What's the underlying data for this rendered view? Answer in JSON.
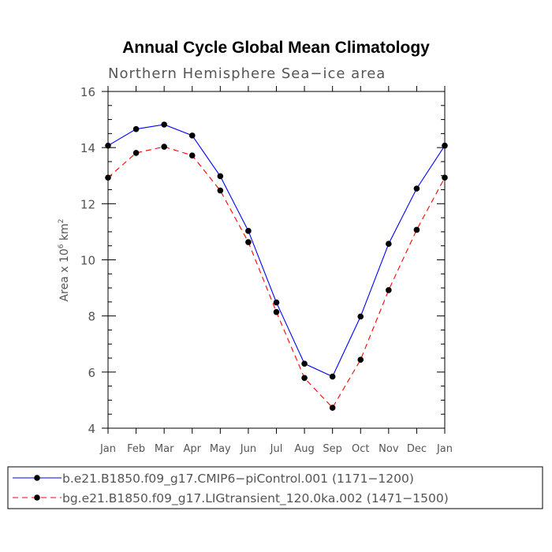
{
  "chart_data": {
    "type": "line",
    "title": "Annual Cycle Global Mean Climatology",
    "subtitle": "Northern Hemisphere Sea−ice area",
    "ylabel": {
      "prefix": "Area x 10",
      "exp": "6",
      "unit": " km",
      "unit_exp": "2"
    },
    "ylim": [
      4,
      16
    ],
    "yticks": [
      "4",
      "6",
      "8",
      "10",
      "12",
      "14",
      "16"
    ],
    "categories": [
      "Jan",
      "Feb",
      "Mar",
      "Apr",
      "May",
      "Jun",
      "Jul",
      "Aug",
      "Sep",
      "Oct",
      "Nov",
      "Dec",
      "Jan"
    ],
    "series": [
      {
        "name": "b.e21.B1850.f09_g17.CMIP6−piControl.001 (1171−1200)",
        "color": "#0000ff",
        "dash": "solid",
        "values": [
          14.07,
          14.66,
          14.82,
          14.43,
          12.98,
          11.03,
          8.48,
          6.3,
          5.84,
          7.98,
          10.57,
          12.54,
          14.07
        ]
      },
      {
        "name": "bg.e21.B1850.f09_g17.LIGtransient_120.0ka.002 (1471−1500)",
        "color": "#ff0000",
        "dash": "dashed",
        "values": [
          12.93,
          13.81,
          14.03,
          13.72,
          12.47,
          10.63,
          8.14,
          5.79,
          4.73,
          6.44,
          8.92,
          11.07,
          12.93
        ]
      }
    ],
    "grid": false,
    "legend": "bottom"
  }
}
